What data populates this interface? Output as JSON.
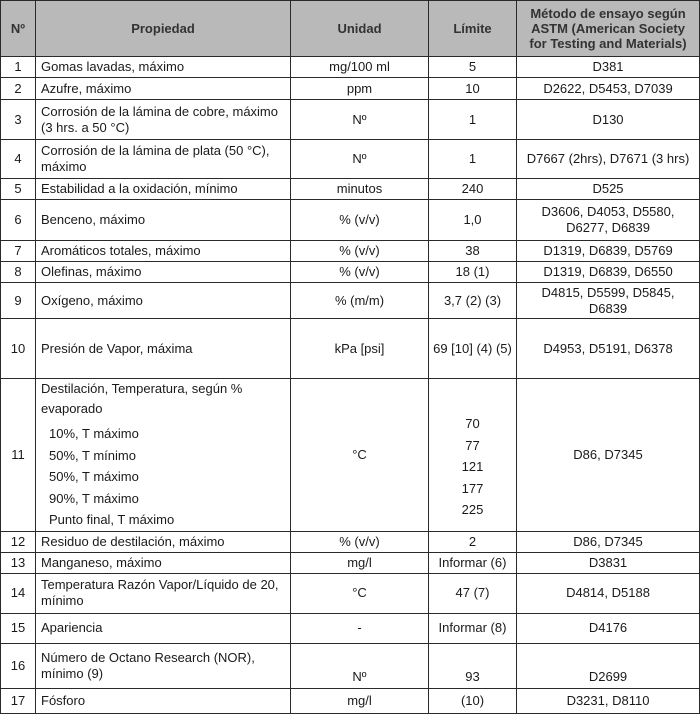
{
  "headers": {
    "num": "Nº",
    "property": "Propiedad",
    "unit": "Unidad",
    "limit": "Límite",
    "method": "Método de ensayo según ASTM (American Society for Testing and Materials)"
  },
  "rows": [
    {
      "num": "1",
      "property": "Gomas lavadas, máximo",
      "unit": "mg/100 ml",
      "limit": "5",
      "method": "D381"
    },
    {
      "num": "2",
      "property": "Azufre, máximo",
      "unit": "ppm",
      "limit": "10",
      "method": "D2622, D5453, D7039"
    },
    {
      "num": "3",
      "property": "Corrosión de la lámina de cobre, máximo (3 hrs. a 50 °C)",
      "unit": "Nº",
      "limit": "1",
      "method": "D130"
    },
    {
      "num": "4",
      "property": "Corrosión de la lámina de plata (50 °C), máximo",
      "unit": "Nº",
      "limit": "1",
      "method": "D7667 (2hrs), D7671 (3 hrs)"
    },
    {
      "num": "5",
      "property": "Estabilidad a la oxidación, mínimo",
      "unit": "minutos",
      "limit": "240",
      "method": "D525"
    },
    {
      "num": "6",
      "property": "Benceno, máximo",
      "unit": "% (v/v)",
      "limit": "1,0",
      "method": "D3606, D4053, D5580, D6277, D6839"
    },
    {
      "num": "7",
      "property": "Aromáticos totales, máximo",
      "unit": "% (v/v)",
      "limit": "38",
      "method": "D1319, D6839, D5769"
    },
    {
      "num": "8",
      "property": "Olefinas, máximo",
      "unit": "% (v/v)",
      "limit": "18 (1)",
      "method": "D1319, D6839, D6550"
    },
    {
      "num": "9",
      "property": "Oxígeno, máximo",
      "unit": "% (m/m)",
      "limit": "3,7 (2) (3)",
      "method": "D4815, D5599, D5845, D6839"
    },
    {
      "num": "10",
      "property": "Presión de Vapor, máxima",
      "unit": "kPa [psi]",
      "limit": "69 [10] (4) (5)",
      "method": "D4953, D5191, D6378"
    },
    {
      "num": "11",
      "property": "Destilación, Temperatura, según % evaporado",
      "unit": "°C",
      "method": "D86, D7345",
      "subitems": [
        {
          "label": "10%, T máximo",
          "limit": "70"
        },
        {
          "label": "50%, T mínimo",
          "limit": "77"
        },
        {
          "label": "50%, T máximo",
          "limit": "121"
        },
        {
          "label": "90%, T máximo",
          "limit": "177"
        },
        {
          "label": "Punto final, T máximo",
          "limit": "225"
        }
      ]
    },
    {
      "num": "12",
      "property": "Residuo de destilación, máximo",
      "unit": "% (v/v)",
      "limit": "2",
      "method": "D86, D7345"
    },
    {
      "num": "13",
      "property": "Manganeso, máximo",
      "unit": "mg/l",
      "limit": "Informar (6)",
      "method": "D3831"
    },
    {
      "num": "14",
      "property": "Temperatura Razón Vapor/Líquido de 20, mínimo",
      "unit": "°C",
      "limit": "47 (7)",
      "method": "D4814, D5188"
    },
    {
      "num": "15",
      "property": "Apariencia",
      "unit": "-",
      "limit": "Informar (8)",
      "method": "D4176"
    },
    {
      "num": "16",
      "property": "Número de Octano Research (NOR), mínimo (9)",
      "unit": "Nº",
      "limit": "93",
      "method": "D2699"
    },
    {
      "num": "17",
      "property": "Fósforo",
      "unit": "mg/l",
      "limit": "(10)",
      "method": "D3231, D8110"
    }
  ]
}
